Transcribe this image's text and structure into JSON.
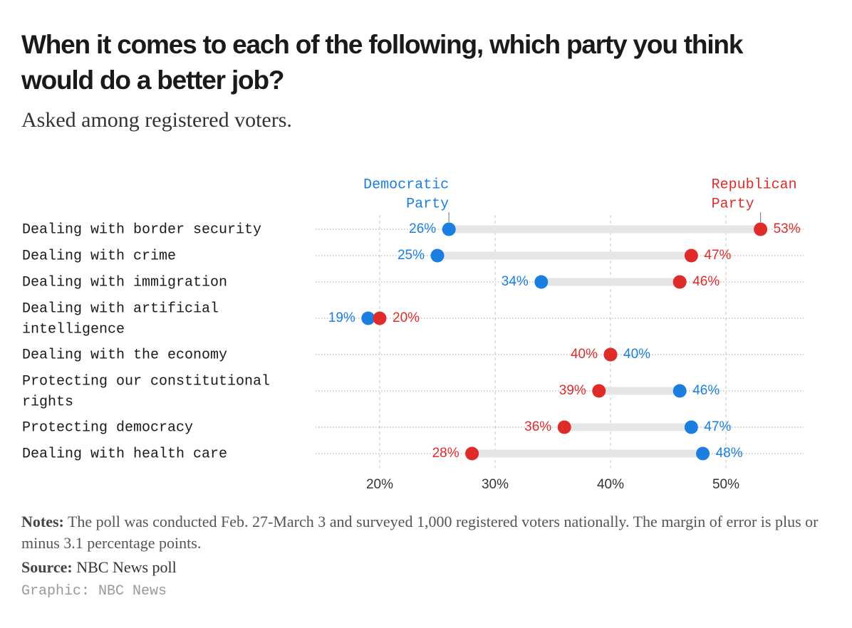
{
  "header": {
    "title": "When it comes to each of the following, which party you think would do a better job?",
    "subtitle": "Asked among registered voters."
  },
  "chart_data": {
    "type": "dot-plot",
    "title": "When it comes to each of the following, which party you think would do a better job?",
    "subtitle": "Asked among registered voters.",
    "xlim": [
      15,
      56
    ],
    "ticks": [
      20,
      30,
      40,
      50
    ],
    "tick_labels": [
      "20%",
      "30%",
      "40%",
      "50%"
    ],
    "series": [
      {
        "name": "Democratic Party",
        "legend_lines": [
          "Democratic",
          "Party"
        ],
        "color": "#1a7fe0"
      },
      {
        "name": "Republican Party",
        "legend_lines": [
          "Republican",
          "Party"
        ],
        "color": "#e02b2b"
      }
    ],
    "rows": [
      {
        "lines": [
          "Dealing with border security"
        ],
        "dem": 26,
        "rep": 53
      },
      {
        "lines": [
          "Dealing with crime"
        ],
        "dem": 25,
        "rep": 47
      },
      {
        "lines": [
          "Dealing with immigration"
        ],
        "dem": 34,
        "rep": 46
      },
      {
        "lines": [
          "Dealing with artificial",
          "intelligence"
        ],
        "dem": 19,
        "rep": 20
      },
      {
        "lines": [
          "Dealing with the economy"
        ],
        "dem": 40,
        "rep": 40
      },
      {
        "lines": [
          "Protecting our constitutional",
          "rights"
        ],
        "dem": 46,
        "rep": 39
      },
      {
        "lines": [
          "Protecting democracy"
        ],
        "dem": 47,
        "rep": 36
      },
      {
        "lines": [
          "Dealing with health care"
        ],
        "dem": 48,
        "rep": 28
      }
    ]
  },
  "footer": {
    "notes_label": "Notes:",
    "notes_text": " The poll was conducted Feb. 27-March 3 and surveyed 1,000 registered voters nationally. The margin of error is plus or minus 3.1 percentage points.",
    "source_label": "Source:",
    "source_text": " NBC News poll",
    "credit": "Graphic: NBC News"
  }
}
